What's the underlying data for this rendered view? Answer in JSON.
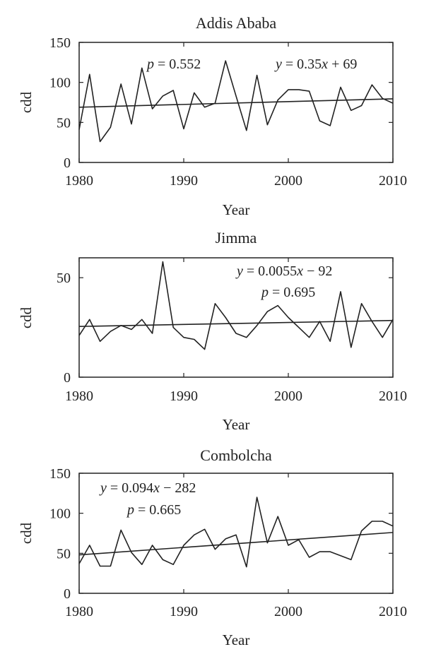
{
  "chart_data": [
    {
      "type": "line",
      "title": "Addis Ababa",
      "xlabel": "Year",
      "ylabel": "cdd",
      "xlim": [
        1980,
        2010
      ],
      "ylim": [
        0,
        150
      ],
      "xticks": [
        1980,
        1990,
        2000,
        2010
      ],
      "yticks": [
        0,
        50,
        100,
        150
      ],
      "grid": false,
      "series": [
        {
          "x": [
            1980,
            1981,
            1982,
            1983,
            1984,
            1985,
            1986,
            1987,
            1988,
            1989,
            1990,
            1991,
            1992,
            1993,
            1994,
            1995,
            1996,
            1997,
            1998,
            1999,
            2000,
            2001,
            2002,
            2003,
            2004,
            2005,
            2006,
            2007,
            2008,
            2009,
            2010
          ],
          "values": [
            41,
            110,
            26,
            44,
            98,
            48,
            118,
            67,
            83,
            90,
            42,
            87,
            69,
            74,
            127,
            83,
            40,
            109,
            47,
            78,
            91,
            91,
            89,
            52,
            46,
            94,
            65,
            71,
            97,
            80,
            74
          ]
        }
      ],
      "trend": {
        "slope": 0.35,
        "intercept": 69,
        "start": 69,
        "end": 79.5
      },
      "annotations": [
        {
          "label": "p_value",
          "text": "p = 0.552"
        },
        {
          "label": "equation",
          "text": "y = 0.35x + 69"
        }
      ]
    },
    {
      "type": "line",
      "title": "Jimma",
      "xlabel": "Year",
      "ylabel": "cdd",
      "xlim": [
        1980,
        2010
      ],
      "ylim": [
        0,
        60
      ],
      "xticks": [
        1980,
        1990,
        2000,
        2010
      ],
      "yticks": [
        0,
        50
      ],
      "grid": false,
      "series": [
        {
          "x": [
            1980,
            1981,
            1982,
            1983,
            1984,
            1985,
            1986,
            1987,
            1988,
            1989,
            1990,
            1991,
            1992,
            1993,
            1994,
            1995,
            1996,
            1997,
            1998,
            1999,
            2000,
            2001,
            2002,
            2003,
            2004,
            2005,
            2006,
            2007,
            2008,
            2009,
            2010
          ],
          "values": [
            21,
            29,
            18,
            23,
            26,
            24,
            29,
            22,
            58,
            25,
            20,
            19,
            14,
            37,
            30,
            22,
            20,
            26,
            33,
            36,
            30,
            25,
            20,
            28,
            18,
            43,
            15,
            37,
            28,
            20,
            29
          ]
        }
      ],
      "trend": {
        "slope": 0.0055,
        "intercept": -92,
        "start": 25.5,
        "end": 28.5
      },
      "annotations": [
        {
          "label": "equation",
          "text": "y = 0.0055x − 92"
        },
        {
          "label": "p_value",
          "text": "p = 0.695"
        }
      ]
    },
    {
      "type": "line",
      "title": "Combolcha",
      "xlabel": "Year",
      "ylabel": "cdd",
      "xlim": [
        1980,
        2010
      ],
      "ylim": [
        0,
        150
      ],
      "xticks": [
        1980,
        1990,
        2000,
        2010
      ],
      "yticks": [
        0,
        50,
        100,
        150
      ],
      "grid": false,
      "series": [
        {
          "x": [
            1980,
            1981,
            1982,
            1983,
            1984,
            1985,
            1986,
            1987,
            1988,
            1989,
            1990,
            1991,
            1992,
            1993,
            1994,
            1995,
            1996,
            1997,
            1998,
            1999,
            2000,
            2001,
            2002,
            2003,
            2004,
            2005,
            2006,
            2007,
            2008,
            2009,
            2010
          ],
          "values": [
            37,
            60,
            34,
            34,
            79,
            51,
            36,
            60,
            42,
            36,
            60,
            73,
            80,
            55,
            68,
            73,
            33,
            120,
            63,
            96,
            60,
            67,
            45,
            52,
            52,
            47,
            42,
            78,
            90,
            90,
            84
          ]
        }
      ],
      "trend": {
        "slope": 0.094,
        "intercept": -282,
        "start": 48,
        "end": 76
      },
      "annotations": [
        {
          "label": "equation",
          "text": "y = 0.094x − 282"
        },
        {
          "label": "p_value",
          "text": "p = 0.665"
        }
      ]
    }
  ]
}
